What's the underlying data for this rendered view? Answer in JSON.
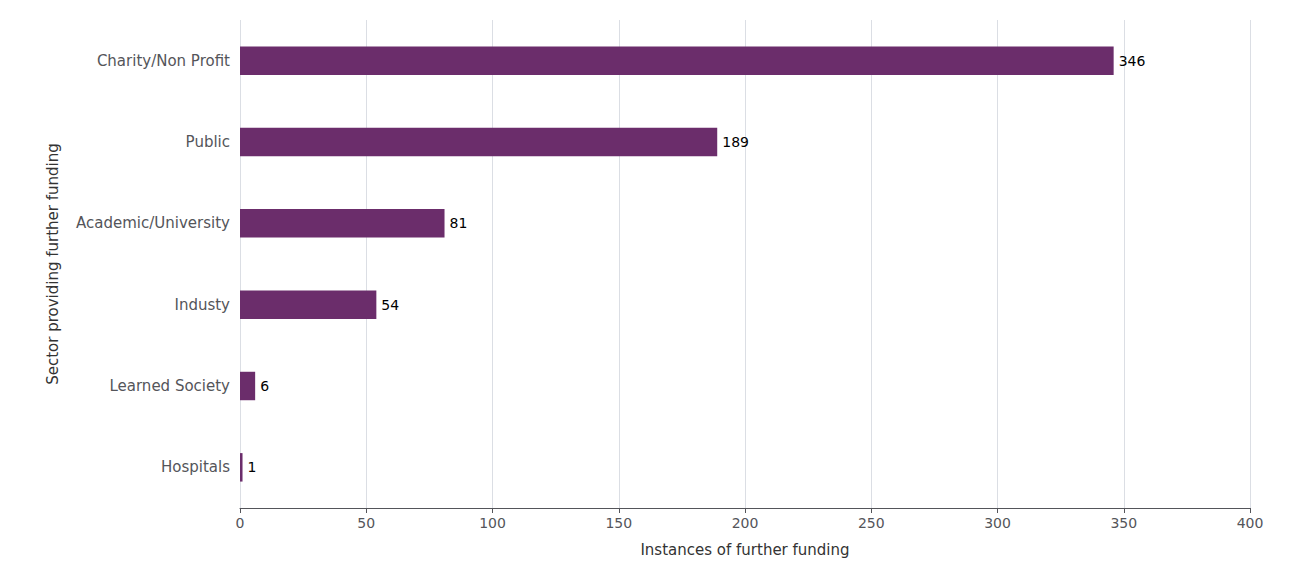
{
  "chart_data": {
    "type": "bar",
    "orientation": "horizontal",
    "categories": [
      "Charity/Non Profit",
      "Public",
      "Academic/University",
      "Industy",
      "Learned Society",
      "Hospitals"
    ],
    "values": [
      346,
      189,
      81,
      54,
      6,
      1
    ],
    "color": "#6b2d6b",
    "xlabel": "Instances of further funding",
    "ylabel": "Sector providing further funding",
    "xlim": [
      0,
      400
    ],
    "xticks": [
      0,
      50,
      100,
      150,
      200,
      250,
      300,
      350,
      400
    ],
    "grid": true,
    "data_labels": true
  }
}
